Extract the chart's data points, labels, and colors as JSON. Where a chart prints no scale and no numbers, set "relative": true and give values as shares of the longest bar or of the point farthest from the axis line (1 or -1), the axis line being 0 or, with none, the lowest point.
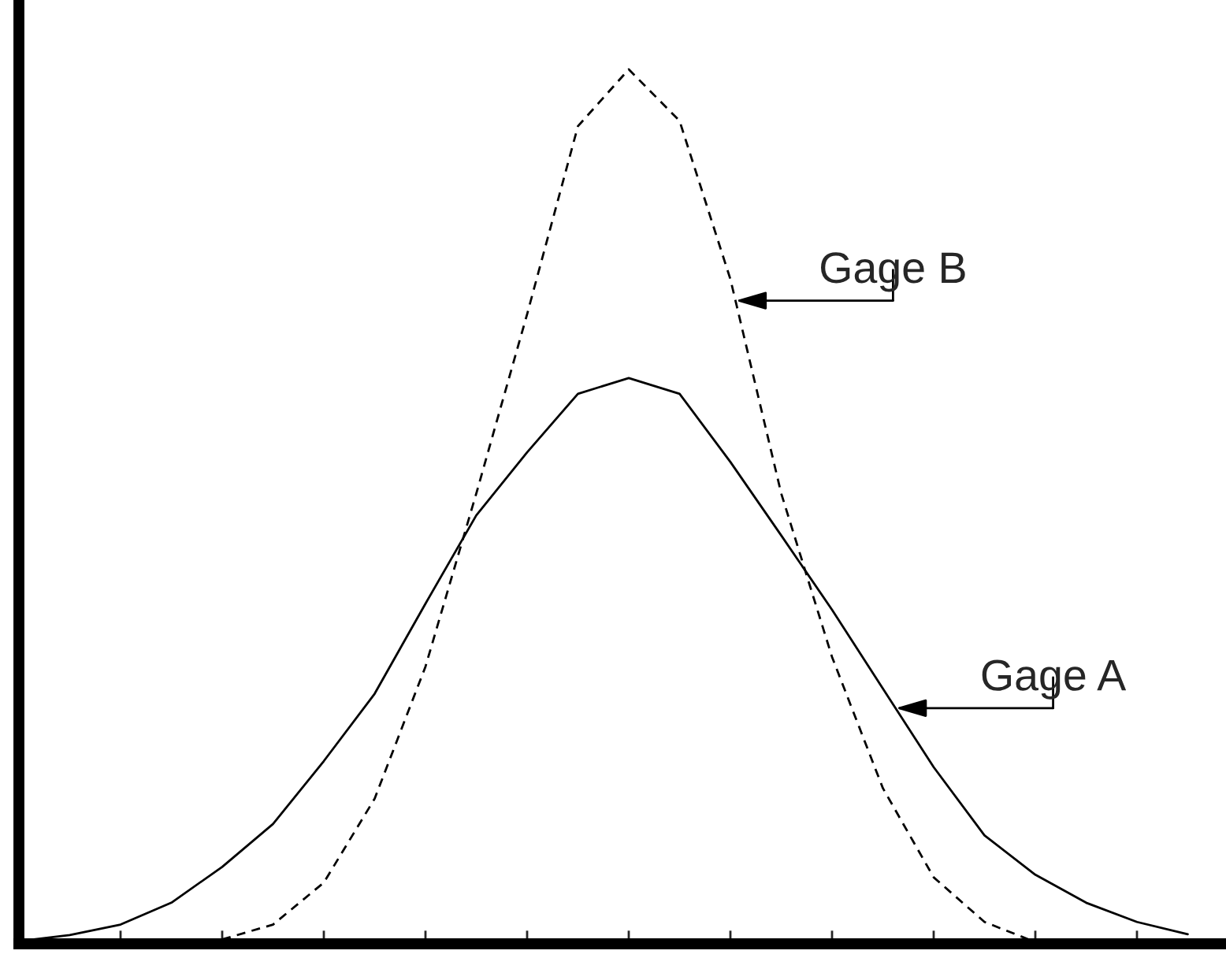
{
  "chart_data": {
    "type": "line",
    "relative": true,
    "categories": [
      null,
      null,
      null,
      null,
      null,
      null,
      null,
      null,
      null,
      null,
      null,
      null,
      null,
      null,
      null,
      null,
      null,
      null,
      null,
      null,
      null,
      null,
      null,
      null
    ],
    "series": [
      {
        "color": "#000000",
        "line_style": "solid",
        "values": [
          0.003,
          0.01,
          0.022,
          0.047,
          0.088,
          0.137,
          0.209,
          0.286,
          0.389,
          0.49,
          0.562,
          0.629,
          0.647,
          0.629,
          0.551,
          0.467,
          0.382,
          0.292,
          0.202,
          0.124,
          0.079,
          0.047,
          0.025,
          0.011
        ]
      },
      {
        "color": "#000000",
        "line_style": "dashed",
        "values": [
          null,
          null,
          null,
          null,
          0.005,
          0.022,
          0.07,
          0.166,
          0.317,
          0.515,
          0.72,
          0.935,
          1.0,
          0.941,
          0.76,
          0.515,
          0.328,
          0.178,
          0.076,
          0.025,
          0.002,
          null,
          null,
          null
        ]
      }
    ],
    "annotations": [
      "Gage B",
      "Gage A"
    ],
    "grid": false,
    "marker": "none"
  }
}
